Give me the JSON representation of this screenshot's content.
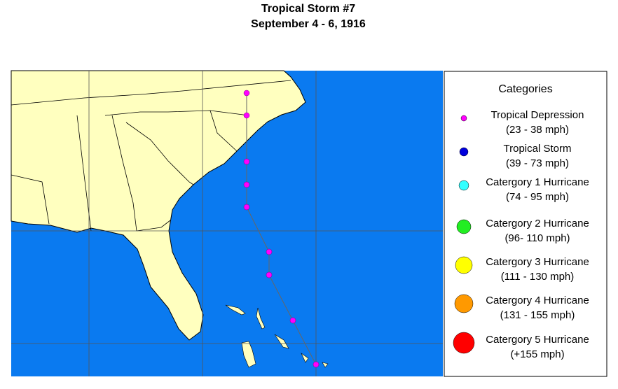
{
  "header": {
    "title": "Tropical Storm #7",
    "subtitle": "September 4 - 6, 1916"
  },
  "legend": {
    "title": "Categories",
    "items": [
      {
        "label": "Tropical Depression",
        "range": "(23 - 38 mph)",
        "color": "#ff00ff"
      },
      {
        "label": "Tropical Storm",
        "range": "(39 - 73 mph)",
        "color": "#0000dd"
      },
      {
        "label": "Catergory 1 Hurricane",
        "range": "(74 - 95 mph)",
        "color": "#33ffff"
      },
      {
        "label": "Catergory 2 Hurricane",
        "range": "(96- 110 mph)",
        "color": "#22ee22"
      },
      {
        "label": "Catergory 3 Hurricane",
        "range": "(111 - 130 mph)",
        "color": "#ffff00"
      },
      {
        "label": "Catergory 4 Hurricane",
        "range": "(131 - 155 mph)",
        "color": "#ff9900"
      },
      {
        "label": "Catergory 5 Hurricane",
        "range": "(+155 mph)",
        "color": "#ff0000"
      }
    ]
  }
}
